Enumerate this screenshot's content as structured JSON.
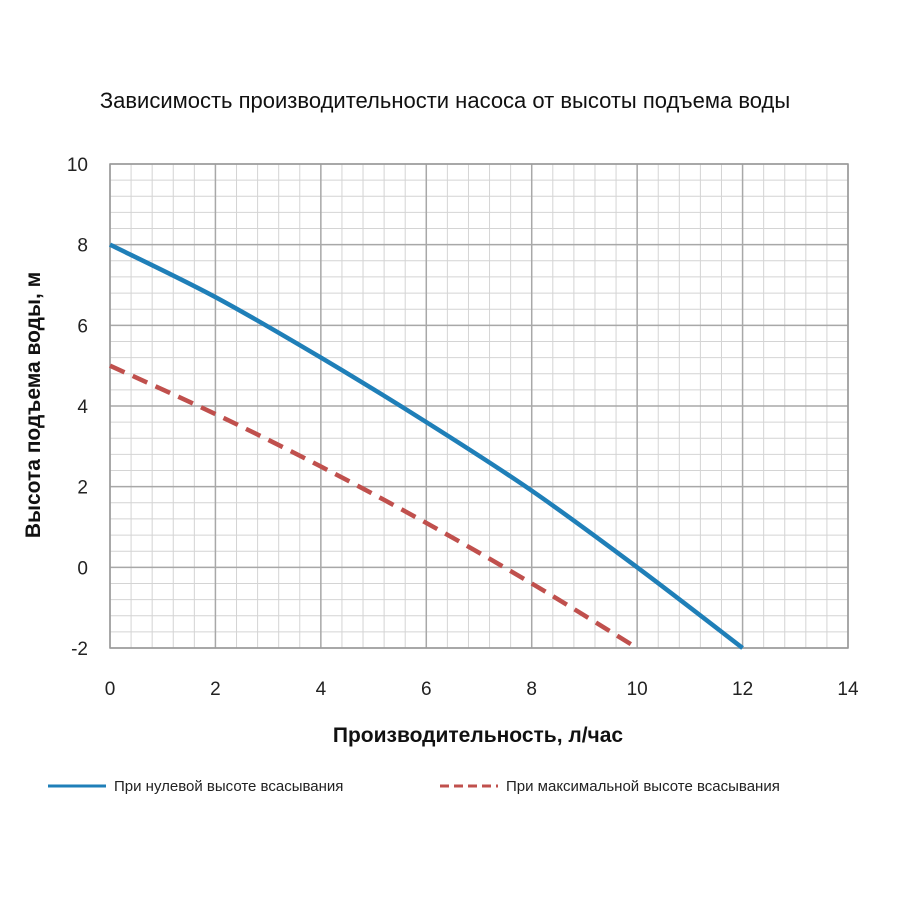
{
  "chart_data": {
    "type": "line",
    "title": "Зависимость производительности насоса от высоты подъема воды",
    "xlabel": "Производительность, л/час",
    "ylabel": "Высота подъема воды, м",
    "xlim": [
      0,
      14
    ],
    "ylim": [
      -2,
      10
    ],
    "xticks": [
      0,
      2,
      4,
      6,
      8,
      10,
      12,
      14
    ],
    "yticks": [
      -2,
      0,
      2,
      4,
      6,
      8,
      10
    ],
    "grid": true,
    "legend_position": "bottom",
    "series": [
      {
        "name": "При нулевой высоте всасывания",
        "color": "#1f7fb8",
        "style": "solid",
        "x": [
          0,
          2,
          4,
          6,
          8,
          10,
          12
        ],
        "y": [
          8.0,
          6.7,
          5.2,
          3.6,
          1.9,
          0.0,
          -2.0
        ]
      },
      {
        "name": "При максимальной высоте всасывания",
        "color": "#c0504d",
        "style": "dashed",
        "x": [
          0,
          2,
          4,
          6,
          8,
          10
        ],
        "y": [
          5.0,
          3.8,
          2.5,
          1.1,
          -0.4,
          -2.0
        ]
      }
    ]
  }
}
